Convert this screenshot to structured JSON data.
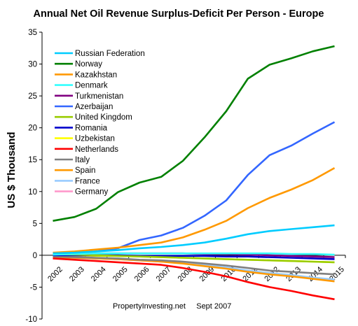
{
  "chart_data": {
    "type": "line",
    "title": "Annual Net Oil Revenue Surplus-Deficit Per Person - Europe",
    "ylabel": "US $ Thousand",
    "xlabel": "",
    "ylim": [
      -10,
      35
    ],
    "yticks": [
      -10,
      -5,
      0,
      5,
      10,
      15,
      20,
      25,
      30,
      35
    ],
    "x": [
      "2002",
      "2003",
      "2004",
      "2005",
      "2006",
      "2007",
      "2008",
      "2009",
      "2010",
      "2011",
      "2012",
      "2013",
      "2014",
      "2015"
    ],
    "grid": false,
    "legend_position": "top-left",
    "annotation": "PropertyInvesting.net     Sept 2007",
    "series": [
      {
        "name": "Russian Federation",
        "color": "#00CCFF",
        "values": [
          0.3,
          0.4,
          0.6,
          0.8,
          1.1,
          1.3,
          1.6,
          2.0,
          2.6,
          3.3,
          3.8,
          4.1,
          4.4,
          4.7
        ]
      },
      {
        "name": "Norway",
        "color": "#008000",
        "values": [
          5.4,
          6.0,
          7.3,
          9.9,
          11.4,
          12.3,
          14.8,
          18.5,
          22.6,
          27.7,
          29.9,
          30.9,
          32.0,
          32.8
        ]
      },
      {
        "name": "Kazakhstan",
        "color": "#FF9900",
        "values": [
          0.4,
          0.6,
          0.9,
          1.2,
          1.6,
          2.0,
          2.8,
          4.0,
          5.4,
          7.4,
          9.0,
          10.3,
          11.8,
          13.7
        ]
      },
      {
        "name": "Denmark",
        "color": "#33FFFF",
        "values": [
          0.1,
          0.2,
          0.3,
          0.3,
          0.3,
          0.3,
          0.3,
          0.3,
          0.3,
          0.3,
          0.3,
          0.2,
          0.2,
          0.1
        ]
      },
      {
        "name": "Turkmenistan",
        "color": "#800080",
        "values": [
          0.2,
          0.2,
          0.3,
          0.3,
          0.3,
          0.3,
          0.3,
          0.2,
          0.2,
          0.1,
          0.0,
          -0.1,
          -0.2,
          -0.3
        ]
      },
      {
        "name": "Azerbaijan",
        "color": "#3366FF",
        "values": [
          0.3,
          0.4,
          0.6,
          1.1,
          2.4,
          3.1,
          4.3,
          6.2,
          8.6,
          12.6,
          15.7,
          17.2,
          19.1,
          20.9
        ]
      },
      {
        "name": "United Kingdom",
        "color": "#99CC00",
        "values": [
          0.2,
          0.1,
          0.0,
          -0.1,
          -0.2,
          -0.3,
          -0.4,
          -0.5,
          -0.6,
          -0.7,
          -0.8,
          -0.9,
          -1.0,
          -1.1
        ]
      },
      {
        "name": "Romania",
        "color": "#0000CC",
        "values": [
          0.0,
          0.0,
          0.0,
          0.0,
          -0.1,
          -0.1,
          -0.1,
          -0.1,
          -0.2,
          -0.2,
          -0.3,
          -0.4,
          -0.5,
          -0.6
        ]
      },
      {
        "name": "Uzbekistan",
        "color": "#FFFF00",
        "values": [
          0.0,
          0.0,
          -0.1,
          -0.1,
          -0.2,
          -0.3,
          -0.4,
          -0.5,
          -0.6,
          -0.7,
          -0.8,
          -0.9,
          -1.0,
          -1.1
        ]
      },
      {
        "name": "Netherlands",
        "color": "#FF0000",
        "values": [
          -0.5,
          -0.7,
          -0.9,
          -1.1,
          -1.3,
          -1.5,
          -2.0,
          -2.6,
          -3.3,
          -4.2,
          -5.0,
          -5.6,
          -6.3,
          -6.9
        ]
      },
      {
        "name": "Italy",
        "color": "#808080",
        "values": [
          -0.2,
          -0.3,
          -0.4,
          -0.5,
          -0.7,
          -0.8,
          -1.0,
          -1.3,
          -1.6,
          -2.0,
          -2.4,
          -2.6,
          -2.8,
          -3.0
        ]
      },
      {
        "name": "Spain",
        "color": "#FF9900",
        "values": [
          -0.3,
          -0.4,
          -0.5,
          -0.6,
          -0.8,
          -1.0,
          -1.3,
          -1.7,
          -2.1,
          -2.6,
          -3.0,
          -3.3,
          -3.7,
          -4.1
        ]
      },
      {
        "name": "France",
        "color": "#99CCFF",
        "values": [
          -0.3,
          -0.4,
          -0.5,
          -0.6,
          -0.8,
          -0.9,
          -1.2,
          -1.5,
          -1.9,
          -2.4,
          -2.8,
          -3.1,
          -3.5,
          -3.8
        ]
      },
      {
        "name": "Germany",
        "color": "#FF99CC",
        "values": [
          -0.3,
          -0.4,
          -0.5,
          -0.6,
          -0.8,
          -1.0,
          -1.2,
          -1.6,
          -2.0,
          -2.5,
          -2.9,
          -3.2,
          -3.6,
          -3.9
        ]
      }
    ]
  }
}
